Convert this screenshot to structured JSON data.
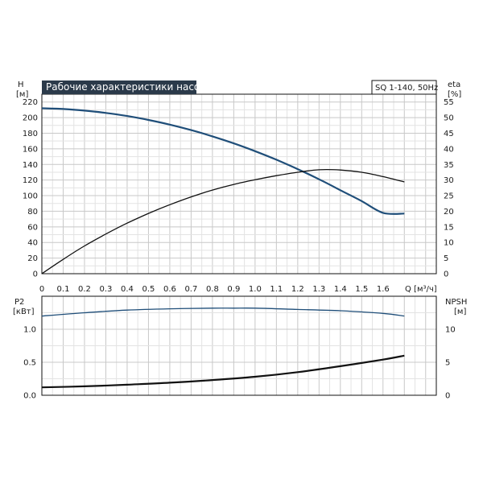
{
  "chart_data": [
    {
      "type": "line",
      "title": "Рабочие характеристики насоса",
      "model_label": "SQ 1-140, 50Hz",
      "xlabel": "Q [м³/ч]",
      "ylabel_left": "H",
      "ylabel_left_unit": "[м]",
      "ylabel_right": "eta",
      "ylabel_right_unit": "[%]",
      "xlim": [
        0,
        1.85
      ],
      "ylim_left": [
        0,
        230
      ],
      "ylim_right": [
        0,
        57.5
      ],
      "x_ticks": [
        "0",
        "0.1",
        "0.2",
        "0.3",
        "0.4",
        "0.5",
        "0.6",
        "0.7",
        "0.8",
        "0.9",
        "1.0",
        "1.1",
        "1.2",
        "1.3",
        "1.4",
        "1.5",
        "1.6"
      ],
      "y_ticks_left": [
        "0",
        "20",
        "40",
        "60",
        "80",
        "100",
        "120",
        "140",
        "160",
        "180",
        "200",
        "220"
      ],
      "y_ticks_right": [
        "0",
        "5",
        "10",
        "15",
        "20",
        "25",
        "30",
        "35",
        "40",
        "45",
        "50",
        "55"
      ],
      "grid": true,
      "series": [
        {
          "axis": "left",
          "color": "#1f4e79",
          "x": [
            0,
            0.1,
            0.2,
            0.3,
            0.4,
            0.5,
            0.6,
            0.7,
            0.8,
            0.9,
            1.0,
            1.1,
            1.2,
            1.3,
            1.4,
            1.5,
            1.6,
            1.7
          ],
          "values": [
            212,
            211,
            209,
            206,
            202,
            197,
            191,
            184,
            176,
            167,
            157,
            146,
            134,
            121,
            107,
            93,
            78,
            77
          ]
        },
        {
          "axis": "right",
          "color": "#111111",
          "x": [
            0,
            0.1,
            0.2,
            0.3,
            0.4,
            0.5,
            0.6,
            0.7,
            0.8,
            0.9,
            1.0,
            1.1,
            1.2,
            1.3,
            1.4,
            1.5,
            1.6,
            1.7
          ],
          "values": [
            0,
            4.6,
            8.9,
            12.7,
            16.2,
            19.3,
            22.1,
            24.6,
            26.8,
            28.6,
            30.1,
            31.4,
            32.5,
            33.3,
            33.2,
            32.5,
            31.1,
            29.4
          ]
        }
      ]
    },
    {
      "type": "line",
      "xlim": [
        0,
        1.85
      ],
      "ylabel_left": "P2",
      "ylabel_left_unit": "[кВт]",
      "ylabel_right": "NPSH",
      "ylabel_right_unit": "[м]",
      "ylim_left": [
        0,
        1.5
      ],
      "ylim_right": [
        0,
        15
      ],
      "y_ticks_left": [
        "0.0",
        "0.5",
        "1.0"
      ],
      "y_ticks_right": [
        "0",
        "5",
        "10"
      ],
      "grid": true,
      "series": [
        {
          "axis": "left",
          "color": "#1f4e79",
          "x": [
            0,
            0.2,
            0.4,
            0.6,
            0.8,
            0.9,
            1.0,
            1.2,
            1.4,
            1.6,
            1.7
          ],
          "values": [
            1.2,
            1.25,
            1.29,
            1.31,
            1.32,
            1.32,
            1.32,
            1.3,
            1.28,
            1.24,
            1.2
          ]
        },
        {
          "axis": "right",
          "color": "#111111",
          "x": [
            0,
            0.2,
            0.4,
            0.6,
            0.8,
            1.0,
            1.2,
            1.4,
            1.6,
            1.7
          ],
          "values": [
            1.2,
            1.35,
            1.6,
            1.9,
            2.3,
            2.8,
            3.5,
            4.4,
            5.4,
            6
          ]
        }
      ]
    }
  ]
}
